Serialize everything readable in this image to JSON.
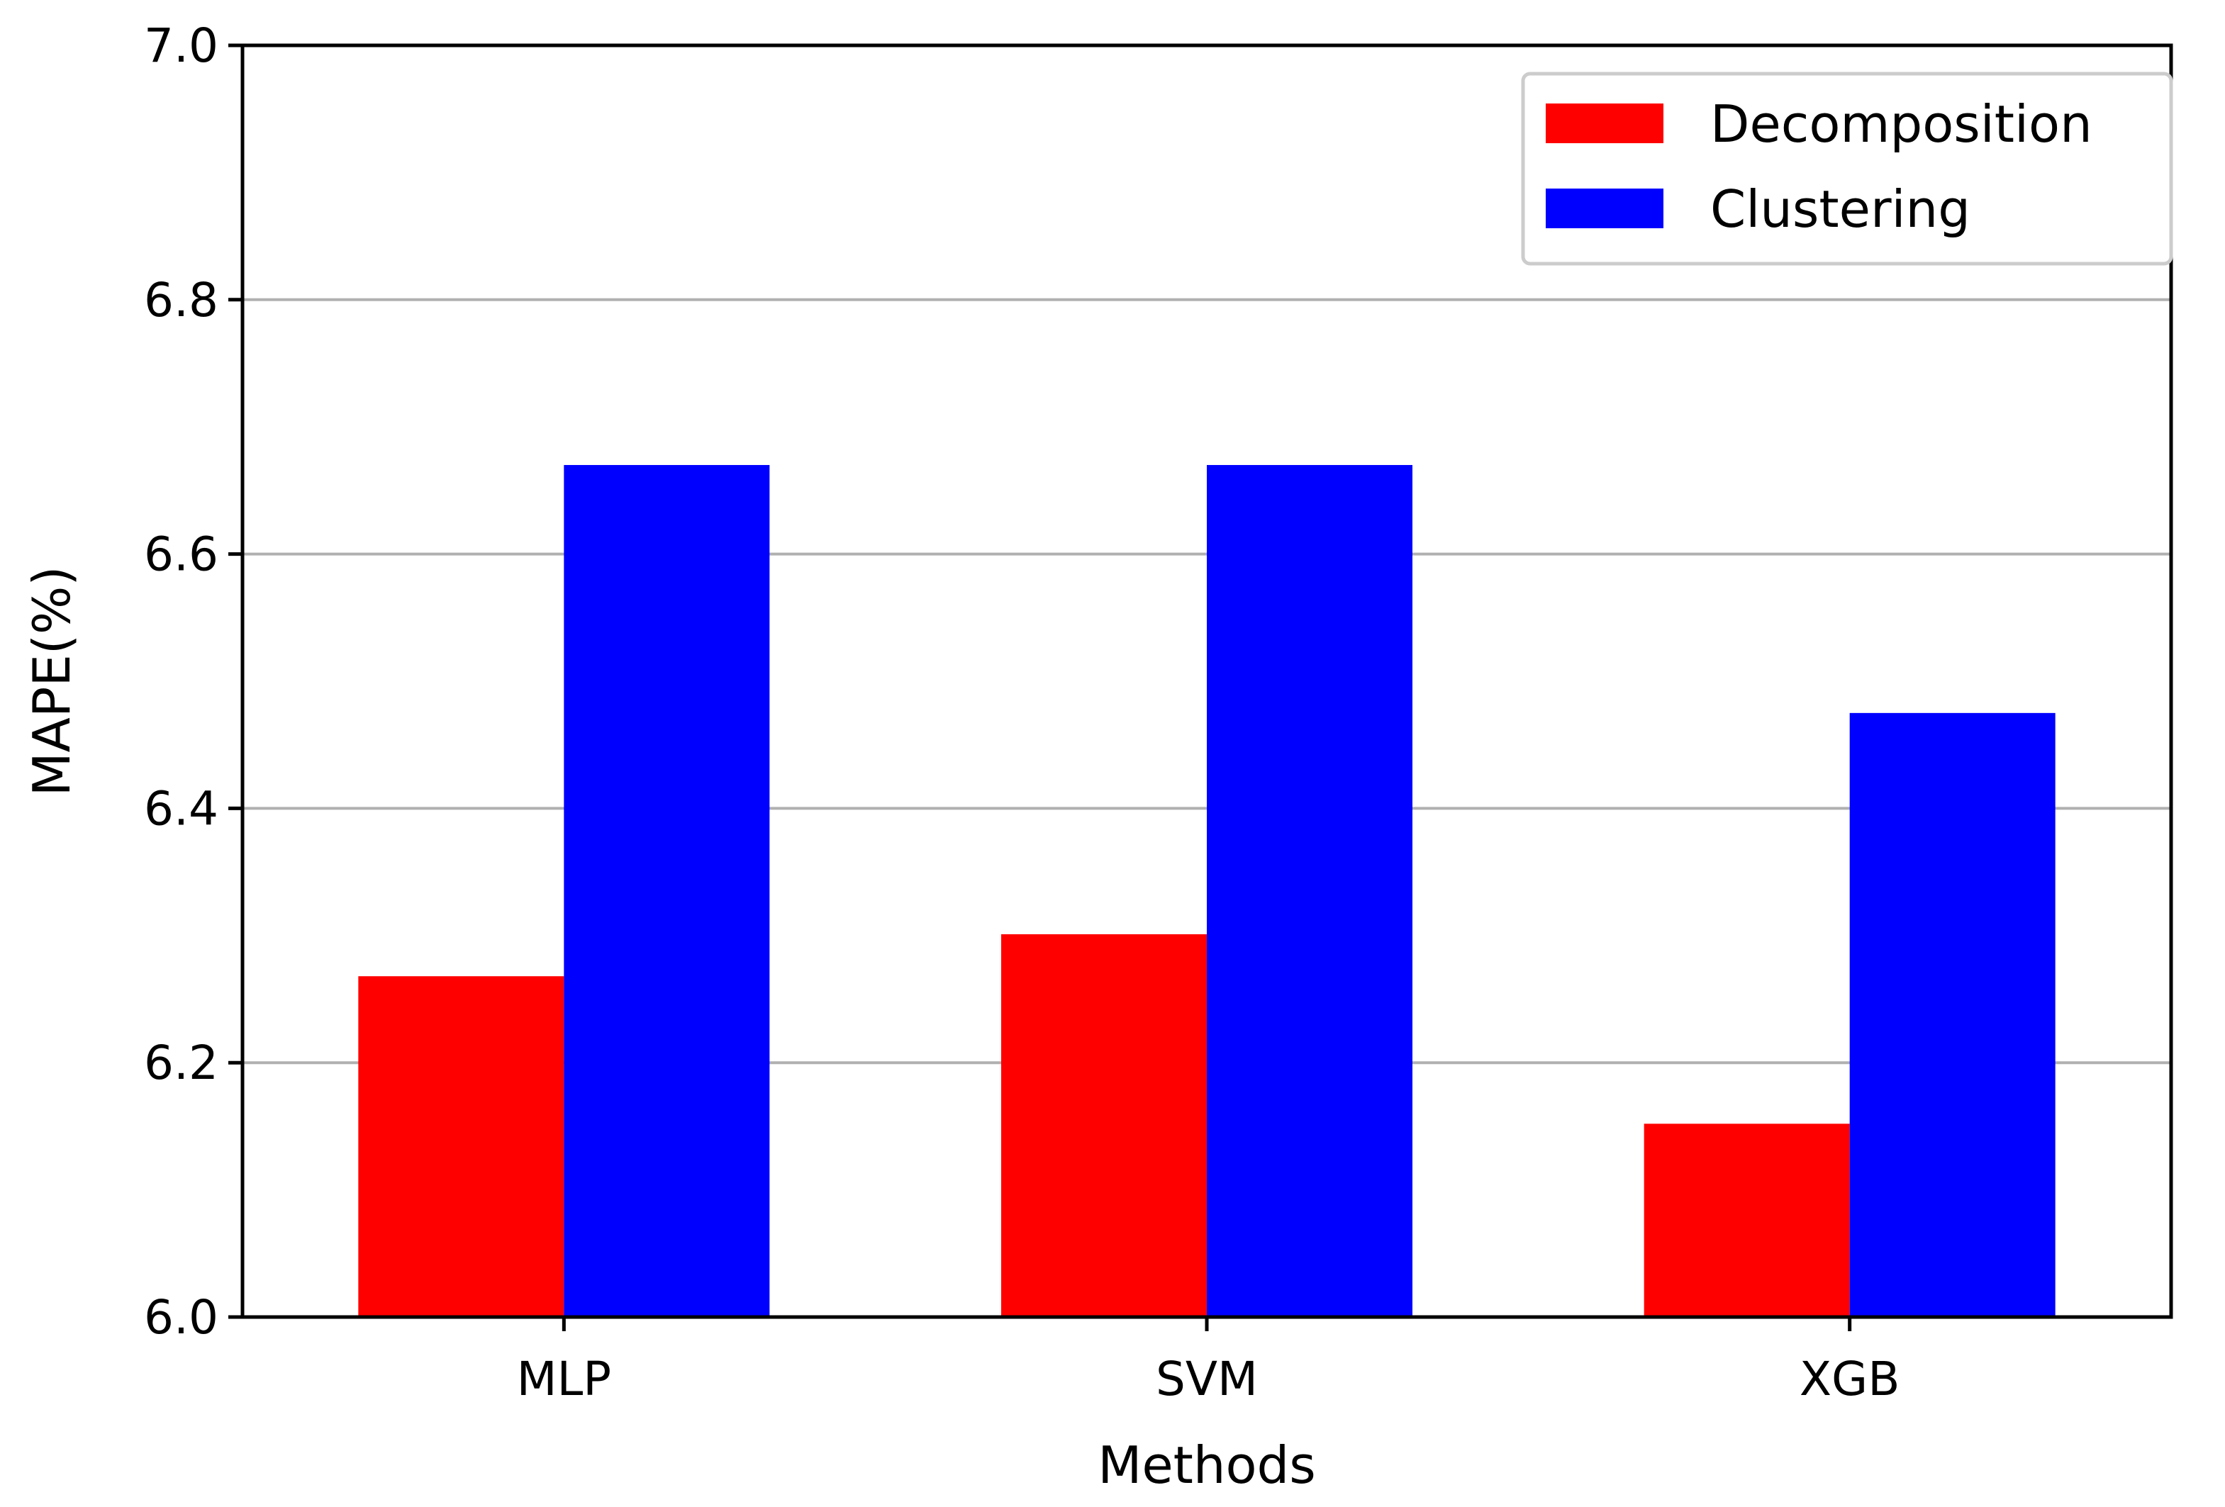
{
  "chart_data": {
    "type": "bar",
    "title": "",
    "xlabel": "Methods",
    "ylabel": "MAPE(%)",
    "categories": [
      "MLP",
      "SVM",
      "XGB"
    ],
    "series": [
      {
        "name": "Decomposition",
        "color": "#ff0000",
        "values": [
          6.268,
          6.301,
          6.152
        ]
      },
      {
        "name": "Clustering",
        "color": "#0000ff",
        "values": [
          6.67,
          6.67,
          6.475
        ]
      }
    ],
    "ylim": [
      6.0,
      7.0
    ],
    "yticks": [
      6.0,
      6.2,
      6.4,
      6.6,
      6.8,
      7.0
    ],
    "ytick_labels": [
      "6.0",
      "6.2",
      "6.4",
      "6.6",
      "6.8",
      "7.0"
    ],
    "grid": {
      "y": true,
      "x": false
    },
    "legend_position": "top-right"
  }
}
